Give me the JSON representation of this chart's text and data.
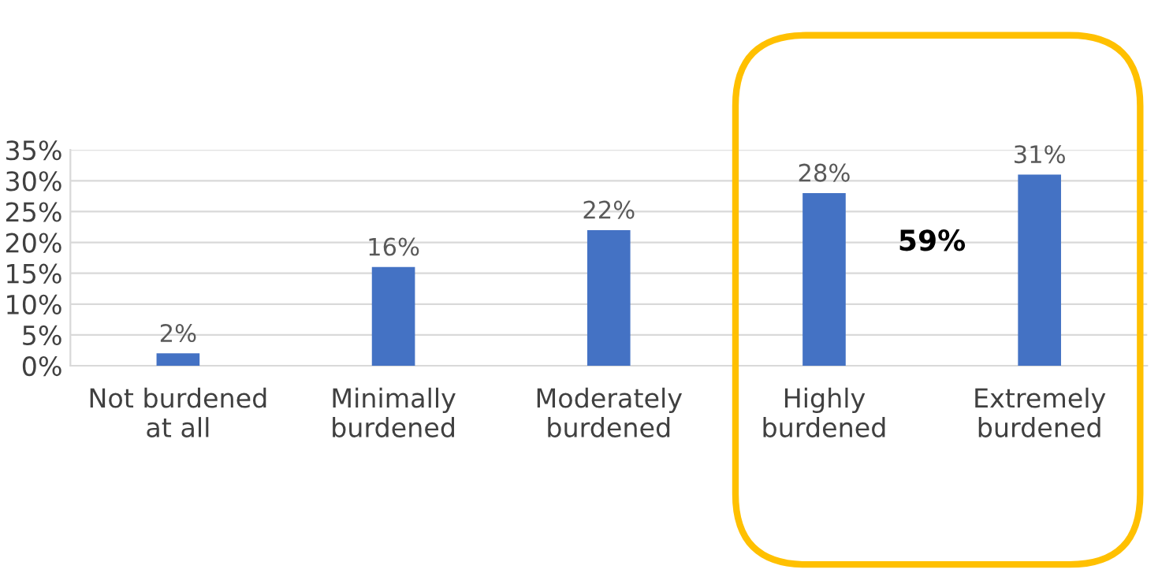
{
  "chart_data": {
    "type": "bar",
    "categories": [
      "Not burdened\nat all",
      "Minimally\nburdened",
      "Moderately\nburdened",
      "Highly\nburdened",
      "Extremely\nburdened"
    ],
    "values": [
      2,
      16,
      22,
      28,
      31
    ],
    "value_labels": [
      "2%",
      "16%",
      "22%",
      "28%",
      "31%"
    ],
    "color": "#4472c4",
    "ylim": [
      0,
      35
    ],
    "yticks": [
      {
        "value": 0,
        "label": "0%"
      },
      {
        "value": 5,
        "label": "5%"
      },
      {
        "value": 10,
        "label": "10%"
      },
      {
        "value": 15,
        "label": "15%"
      },
      {
        "value": 20,
        "label": "20%"
      },
      {
        "value": 25,
        "label": "25%"
      },
      {
        "value": 30,
        "label": "30%"
      },
      {
        "value": 35,
        "label": "35%"
      }
    ],
    "grid": "y",
    "legend": false,
    "annotations": [
      "59%"
    ]
  }
}
